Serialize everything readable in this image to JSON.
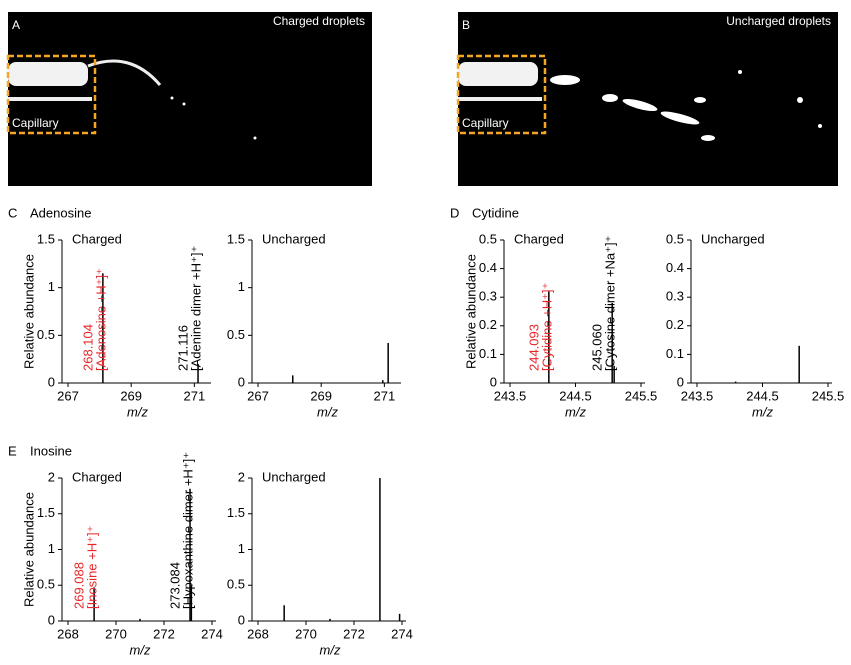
{
  "panels": [
    {
      "label": "A",
      "caption": "Charged droplets",
      "inset": "Capillary"
    },
    {
      "label": "B",
      "caption": "Uncharged droplets",
      "inset": "Capillary"
    }
  ],
  "chart_data": [
    {
      "type": "stem",
      "panel": "C",
      "compound": "Adenosine",
      "title": "Charged",
      "ylabel": "Relative abundance",
      "xlabel": "m/z",
      "color": "#000000",
      "xlim": [
        267,
        271.4
      ],
      "xticks": [
        267,
        269,
        271
      ],
      "ylim": [
        0,
        1.5
      ],
      "yticks": [
        0,
        0.5,
        1,
        1.5
      ],
      "peaks": [
        {
          "x": 268.104,
          "value": 1.15,
          "x_label": "268.104",
          "label": "[Adenosine +H⁺]⁺",
          "label_color": "#e8262a"
        },
        {
          "x": 271.116,
          "value": 0.2,
          "x_label": "271.116",
          "label": "[Adenine dimer +H⁺]⁺",
          "label_color": "#000000"
        }
      ]
    },
    {
      "type": "stem",
      "title": "Uncharged",
      "xlabel": "m/z",
      "color": "#000000",
      "xlim": [
        267,
        271.4
      ],
      "xticks": [
        267,
        269,
        271
      ],
      "ylim": [
        0,
        1.5
      ],
      "yticks": [
        0,
        0.5,
        1,
        1.5
      ],
      "peaks": [
        {
          "x": 268.1,
          "value": 0.08
        },
        {
          "x": 270.95,
          "value": 0.03
        },
        {
          "x": 271.12,
          "value": 0.42
        }
      ]
    },
    {
      "type": "stem",
      "panel": "D",
      "compound": "Cytidine",
      "title": "Charged",
      "ylabel": "Relative abundance",
      "xlabel": "m/z",
      "color": "#000000",
      "xlim": [
        243.5,
        245.5
      ],
      "xticks": [
        243.5,
        244.5,
        245.5
      ],
      "ylim": [
        0,
        0.5
      ],
      "yticks": [
        0,
        0.1,
        0.2,
        0.3,
        0.4,
        0.5
      ],
      "peaks": [
        {
          "x": 244.093,
          "value": 0.32,
          "x_label": "244.093",
          "label": "[Cytidine +H⁺]⁺",
          "label_color": "#e8262a"
        },
        {
          "x": 245.06,
          "value": 0.28,
          "x_label": "245.060",
          "label": "[Cytosine dimer +Na⁺]⁺",
          "label_color": "#000000"
        },
        {
          "x": 245.09,
          "value": 0.06
        }
      ]
    },
    {
      "type": "stem",
      "title": "Uncharged",
      "xlabel": "m/z",
      "color": "#000000",
      "xlim": [
        243.5,
        245.5
      ],
      "xticks": [
        243.5,
        244.5,
        245.5
      ],
      "ylim": [
        0,
        0.5
      ],
      "yticks": [
        0,
        0.1,
        0.2,
        0.3,
        0.4,
        0.5
      ],
      "peaks": [
        {
          "x": 244.09,
          "value": 0.005
        },
        {
          "x": 245.06,
          "value": 0.13
        }
      ]
    },
    {
      "type": "stem",
      "panel": "E",
      "compound": "Inosine",
      "title": "Charged",
      "ylabel": "Relative abundance",
      "xlabel": "m/z",
      "color": "#000000",
      "xlim": [
        268,
        274
      ],
      "xticks": [
        268,
        270,
        272,
        274
      ],
      "ylim": [
        0,
        2
      ],
      "yticks": [
        0,
        0.5,
        1,
        1.5,
        2
      ],
      "peaks": [
        {
          "x": 269.088,
          "value": 0.47,
          "x_label": "269.088",
          "label": "[Inosine +H⁺]⁺",
          "label_color": "#e8262a"
        },
        {
          "x": 271.0,
          "value": 0.03
        },
        {
          "x": 273.084,
          "value": 1.85,
          "x_label": "273.084",
          "label": "[Hypoxanthine dimer +H⁺]⁺",
          "label_color": "#000000"
        },
        {
          "x": 273.14,
          "value": 0.5
        }
      ]
    },
    {
      "type": "stem",
      "title": "Uncharged",
      "xlabel": "m/z",
      "color": "#000000",
      "xlim": [
        268,
        274
      ],
      "xticks": [
        268,
        270,
        272,
        274
      ],
      "ylim": [
        0,
        2
      ],
      "yticks": [
        0,
        0.5,
        1,
        1.5,
        2
      ],
      "peaks": [
        {
          "x": 269.09,
          "value": 0.22
        },
        {
          "x": 271.0,
          "value": 0.03
        },
        {
          "x": 273.08,
          "value": 2.0
        },
        {
          "x": 273.9,
          "value": 0.1
        }
      ]
    }
  ]
}
